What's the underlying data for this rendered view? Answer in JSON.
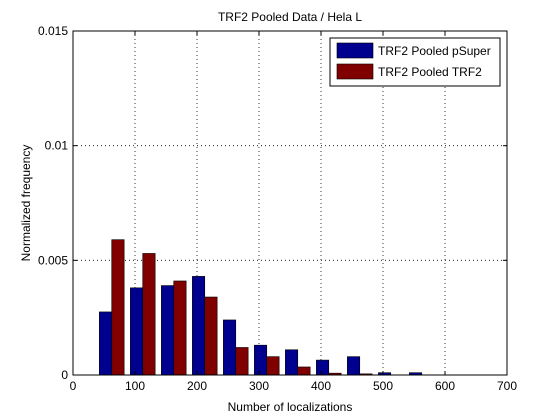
{
  "chart_data": {
    "type": "bar",
    "title": "TRF2 Pooled Data / Hela L",
    "xlabel": "Number of localizations",
    "ylabel": "Normalized frequency",
    "xlim": [
      0,
      700
    ],
    "ylim": [
      0,
      0.015
    ],
    "xticks": [
      0,
      100,
      200,
      300,
      400,
      500,
      600,
      700
    ],
    "xtick_labels": [
      "0",
      "100",
      "200",
      "300",
      "400",
      500,
      "600",
      "700"
    ],
    "yticks": [
      0,
      0.005,
      0.01,
      0.015
    ],
    "ytick_labels": [
      "0",
      "0.005",
      "0.01",
      "0.015"
    ],
    "grid": true,
    "legend_position": "top-right",
    "bin_centers": [
      62.5,
      112.5,
      162.5,
      212.5,
      262.5,
      312.5,
      362.5,
      412.5,
      462.5,
      512.5,
      562.5
    ],
    "series": [
      {
        "name": "TRF2 Pooled pSuper",
        "color": "#00008f",
        "values": [
          0.00275,
          0.0038,
          0.0039,
          0.0043,
          0.0024,
          0.0013,
          0.0011,
          0.00065,
          0.0008,
          0.0001,
          0.0001
        ]
      },
      {
        "name": "TRF2 Pooled TRF2",
        "color": "#800000",
        "values": [
          0.0059,
          0.0053,
          0.0041,
          0.0034,
          0.0012,
          0.0008,
          0.00035,
          8e-05,
          5e-05,
          0,
          0
        ]
      }
    ]
  }
}
